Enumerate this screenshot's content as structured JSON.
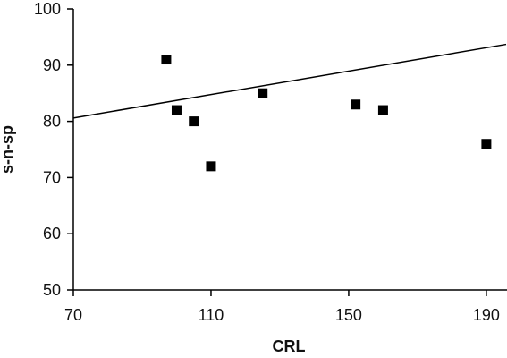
{
  "chart_data": {
    "type": "scatter",
    "xlabel": "CRL",
    "ylabel": "s-n-sp",
    "xlim": [
      70,
      196
    ],
    "ylim": [
      50,
      100
    ],
    "xticks": [
      70,
      110,
      150,
      190
    ],
    "yticks": [
      50,
      60,
      70,
      80,
      90,
      100
    ],
    "grid": false,
    "series": [
      {
        "points": [
          {
            "x": 97,
            "y": 91
          },
          {
            "x": 100,
            "y": 82
          },
          {
            "x": 105,
            "y": 80
          },
          {
            "x": 110,
            "y": 72
          },
          {
            "x": 125,
            "y": 85
          },
          {
            "x": 152,
            "y": 83
          },
          {
            "x": 160,
            "y": 82
          },
          {
            "x": 190,
            "y": 76
          }
        ]
      }
    ],
    "trendline": {
      "from": {
        "x": 70,
        "y": 80.6
      },
      "to": {
        "x": 196,
        "y": 93.7
      }
    },
    "colors": {
      "marker": "#000000",
      "line": "#000000",
      "text": "#111111"
    }
  }
}
